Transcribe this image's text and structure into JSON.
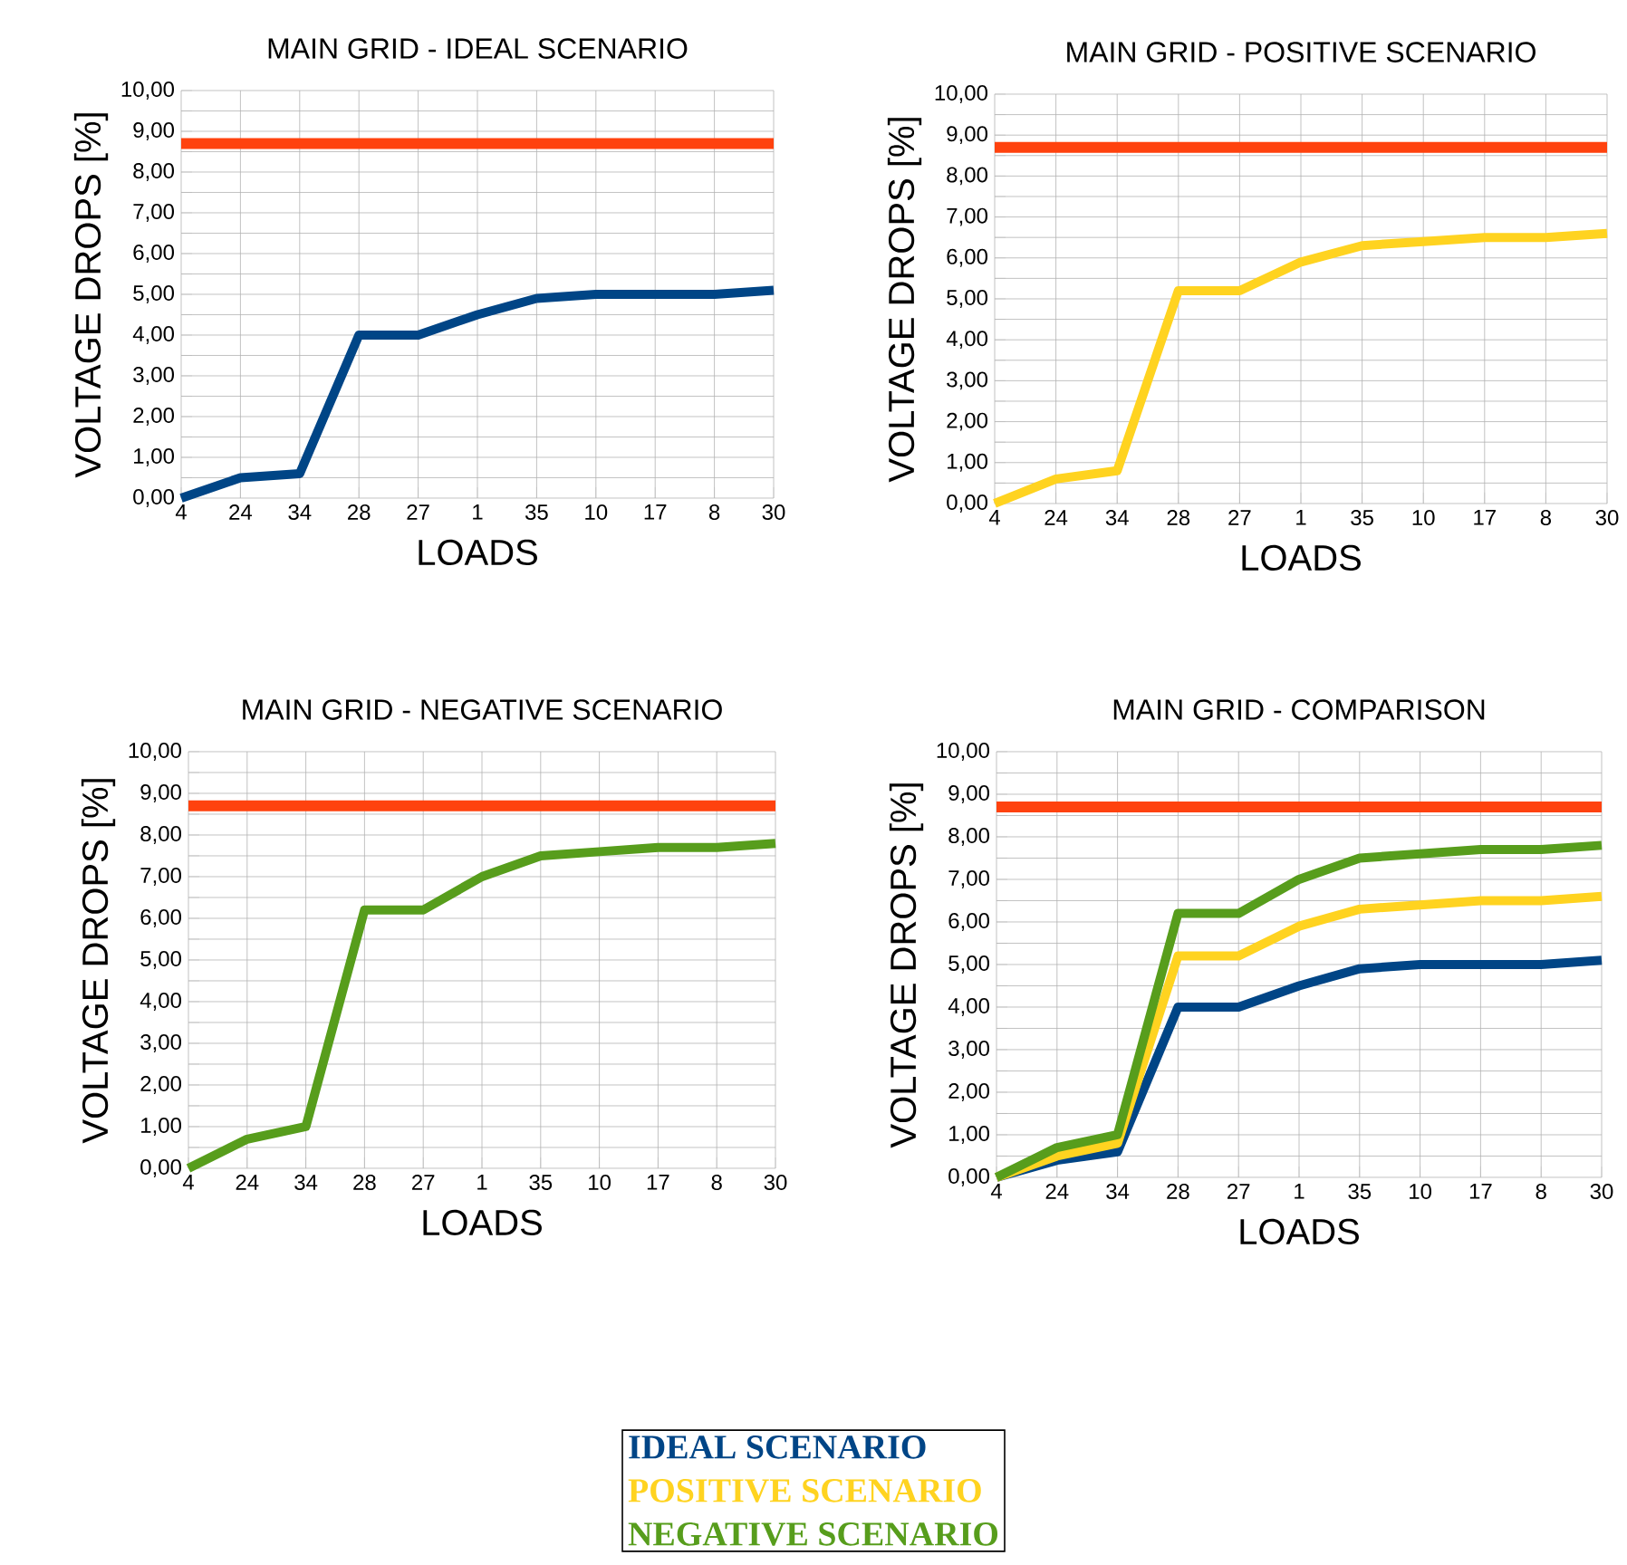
{
  "chart_data": [
    {
      "type": "line",
      "title": "MAIN GRID -  IDEAL SCENARIO",
      "xlabel": "LOADS",
      "ylabel": "VOLTAGE DROPS [%]",
      "categories": [
        "4",
        "24",
        "34",
        "28",
        "27",
        "1",
        "35",
        "10",
        "17",
        "8",
        "30"
      ],
      "series": [
        {
          "color": "#004586",
          "values": [
            0.0,
            0.5,
            0.6,
            4.0,
            4.0,
            4.5,
            4.9,
            5.0,
            5.0,
            5.0,
            5.1
          ]
        }
      ],
      "ylim": [
        0,
        10
      ],
      "yticks": [
        {
          "value": 0,
          "label": "0,00"
        },
        {
          "value": 1,
          "label": "1,00"
        },
        {
          "value": 2,
          "label": "2,00"
        },
        {
          "value": 3,
          "label": "3,00"
        },
        {
          "value": 4,
          "label": "4,00"
        },
        {
          "value": 5,
          "label": "5,00"
        },
        {
          "value": 6,
          "label": "6,00"
        },
        {
          "value": 7,
          "label": "7,00"
        },
        {
          "value": 8,
          "label": "8,00"
        },
        {
          "value": 9,
          "label": "9,00"
        },
        {
          "value": 10,
          "label": "10,00"
        }
      ],
      "ref_lines": [
        {
          "axis": "y",
          "value": 8.7,
          "color": "#ff420e"
        }
      ],
      "grid": true
    },
    {
      "type": "line",
      "title": "MAIN GRID - POSITIVE SCENARIO",
      "xlabel": "LOADS",
      "ylabel": "VOLTAGE DROPS [%]",
      "categories": [
        "4",
        "24",
        "34",
        "28",
        "27",
        "1",
        "35",
        "10",
        "17",
        "8",
        "30"
      ],
      "series": [
        {
          "color": "#ffd320",
          "values": [
            0.0,
            0.6,
            0.8,
            5.2,
            5.2,
            5.9,
            6.3,
            6.4,
            6.5,
            6.5,
            6.6
          ]
        }
      ],
      "ylim": [
        0,
        10
      ],
      "yticks": [
        {
          "value": 0,
          "label": "0,00"
        },
        {
          "value": 1,
          "label": "1,00"
        },
        {
          "value": 2,
          "label": "2,00"
        },
        {
          "value": 3,
          "label": "3,00"
        },
        {
          "value": 4,
          "label": "4,00"
        },
        {
          "value": 5,
          "label": "5,00"
        },
        {
          "value": 6,
          "label": "6,00"
        },
        {
          "value": 7,
          "label": "7,00"
        },
        {
          "value": 8,
          "label": "8,00"
        },
        {
          "value": 9,
          "label": "9,00"
        },
        {
          "value": 10,
          "label": "10,00"
        }
      ],
      "ref_lines": [
        {
          "axis": "y",
          "value": 8.7,
          "color": "#ff420e"
        }
      ],
      "grid": true
    },
    {
      "type": "line",
      "title": "MAIN GRID -  NEGATIVE SCENARIO",
      "xlabel": "LOADS",
      "ylabel": "VOLTAGE DROPS [%]",
      "categories": [
        "4",
        "24",
        "34",
        "28",
        "27",
        "1",
        "35",
        "10",
        "17",
        "8",
        "30"
      ],
      "series": [
        {
          "color": "#579d1c",
          "values": [
            0.0,
            0.7,
            1.0,
            6.2,
            6.2,
            7.0,
            7.5,
            7.6,
            7.7,
            7.7,
            7.8
          ]
        }
      ],
      "ylim": [
        0,
        10
      ],
      "yticks": [
        {
          "value": 0,
          "label": "0,00"
        },
        {
          "value": 1,
          "label": "1,00"
        },
        {
          "value": 2,
          "label": "2,00"
        },
        {
          "value": 3,
          "label": "3,00"
        },
        {
          "value": 4,
          "label": "4,00"
        },
        {
          "value": 5,
          "label": "5,00"
        },
        {
          "value": 6,
          "label": "6,00"
        },
        {
          "value": 7,
          "label": "7,00"
        },
        {
          "value": 8,
          "label": "8,00"
        },
        {
          "value": 9,
          "label": "9,00"
        },
        {
          "value": 10,
          "label": "10,00"
        }
      ],
      "ref_lines": [
        {
          "axis": "y",
          "value": 8.7,
          "color": "#ff420e"
        }
      ],
      "grid": true
    },
    {
      "type": "line",
      "title": "MAIN GRID -  COMPARISON",
      "xlabel": "LOADS",
      "ylabel": "VOLTAGE DROPS [%]",
      "categories": [
        "4",
        "24",
        "34",
        "28",
        "27",
        "1",
        "35",
        "10",
        "17",
        "8",
        "30"
      ],
      "series": [
        {
          "name": "IDEAL SCENARIO",
          "color": "#004586",
          "values": [
            0.0,
            0.4,
            0.6,
            4.0,
            4.0,
            4.5,
            4.9,
            5.0,
            5.0,
            5.0,
            5.1
          ]
        },
        {
          "name": "POSITIVE SCENARIO",
          "color": "#ffd320",
          "values": [
            0.0,
            0.5,
            0.8,
            5.2,
            5.2,
            5.9,
            6.3,
            6.4,
            6.5,
            6.5,
            6.6
          ]
        },
        {
          "name": "NEGATIVE SCENARIO",
          "color": "#579d1c",
          "values": [
            0.0,
            0.7,
            1.0,
            6.2,
            6.2,
            7.0,
            7.5,
            7.6,
            7.7,
            7.7,
            7.8
          ]
        }
      ],
      "ylim": [
        0,
        10
      ],
      "yticks": [
        {
          "value": 0,
          "label": "0,00"
        },
        {
          "value": 1,
          "label": "1,00"
        },
        {
          "value": 2,
          "label": "2,00"
        },
        {
          "value": 3,
          "label": "3,00"
        },
        {
          "value": 4,
          "label": "4,00"
        },
        {
          "value": 5,
          "label": "5,00"
        },
        {
          "value": 6,
          "label": "6,00"
        },
        {
          "value": 7,
          "label": "7,00"
        },
        {
          "value": 8,
          "label": "8,00"
        },
        {
          "value": 9,
          "label": "9,00"
        },
        {
          "value": 10,
          "label": "10,00"
        }
      ],
      "ref_lines": [
        {
          "axis": "y",
          "value": 8.7,
          "color": "#ff420e"
        }
      ],
      "grid": true,
      "legend": "bottom"
    }
  ]
}
